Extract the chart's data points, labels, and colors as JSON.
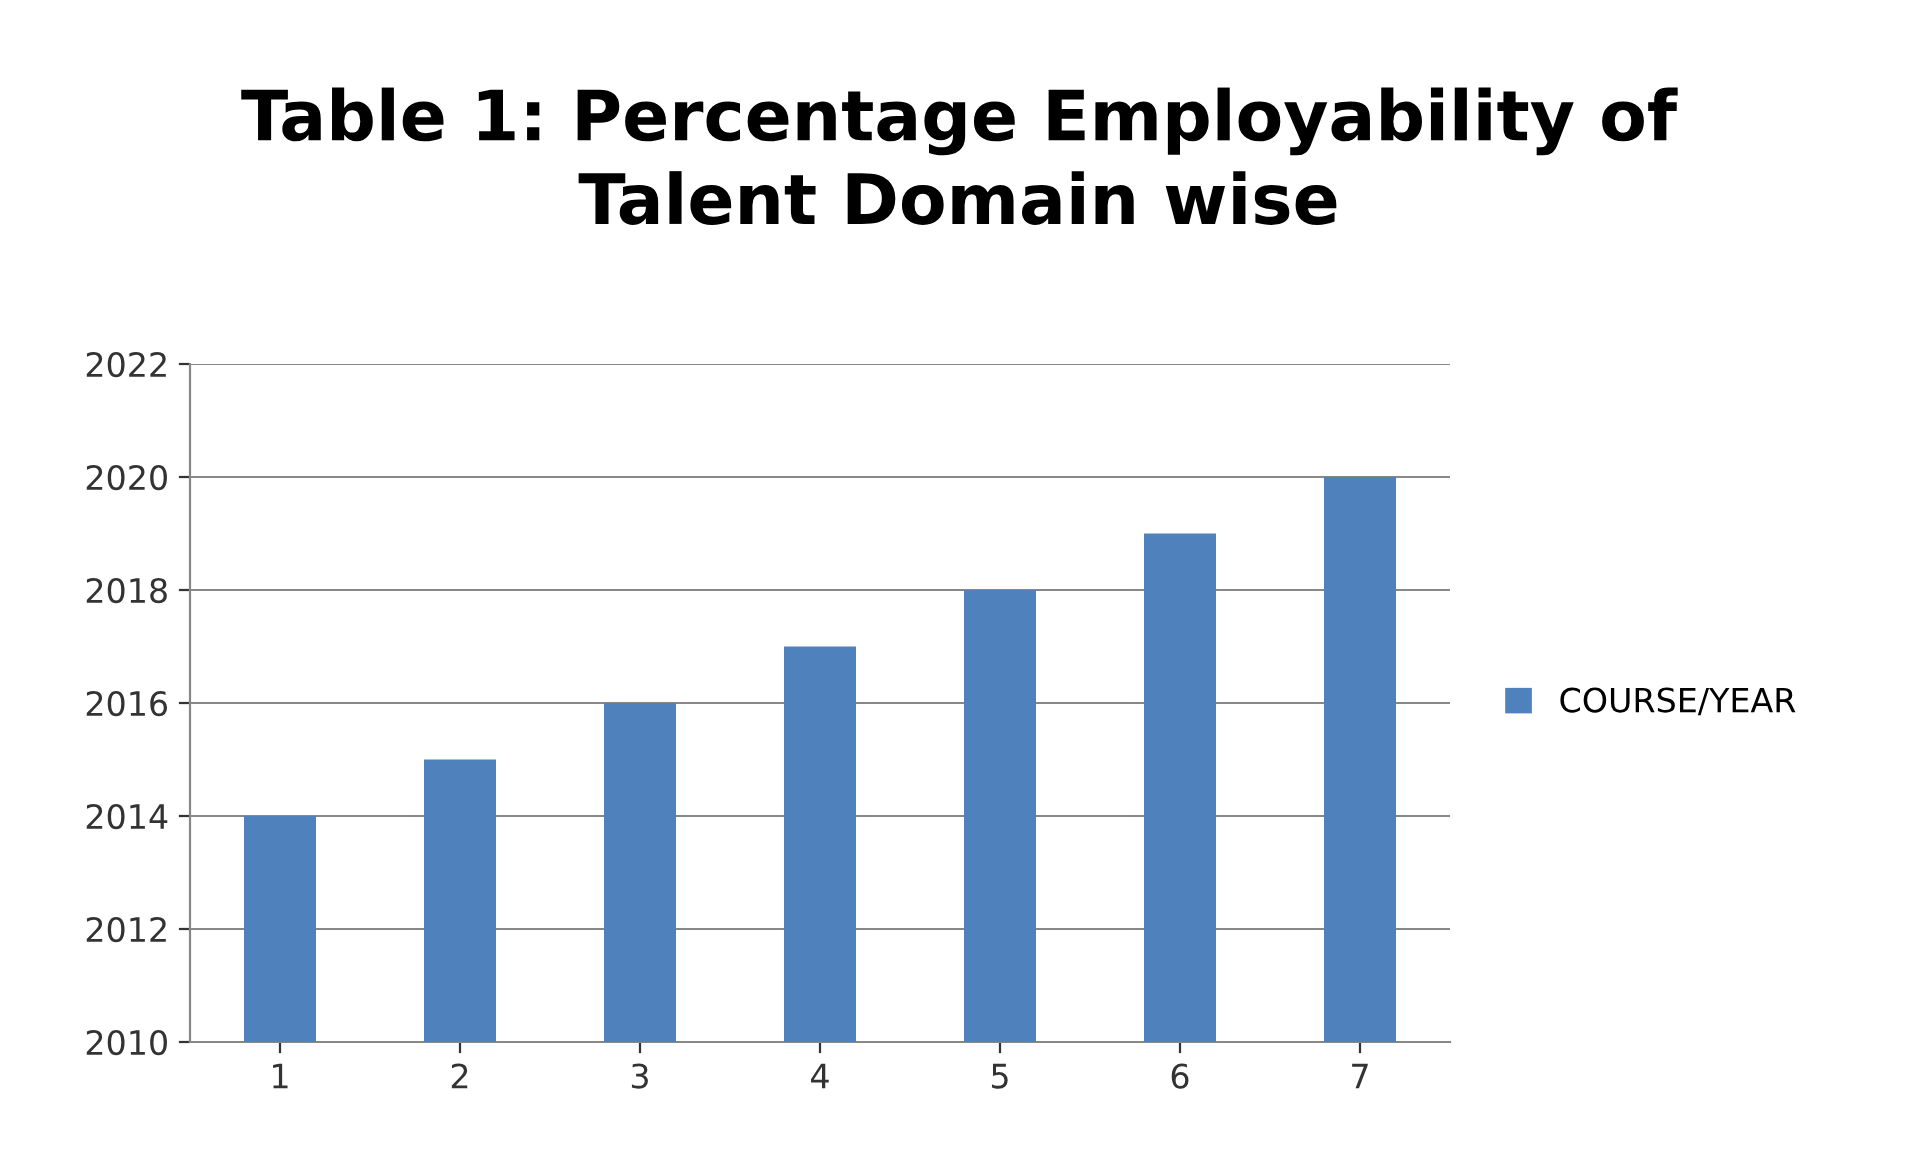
{
  "chart_data": {
    "type": "bar",
    "title": "Table 1: Percentage Employability of\nTalent Domain wise",
    "categories": [
      "1",
      "2",
      "3",
      "4",
      "5",
      "6",
      "7"
    ],
    "series": [
      {
        "name": "COURSE/YEAR",
        "color": "#4f81bd",
        "values": [
          2014,
          2015,
          2016,
          2017,
          2018,
          2019,
          2020
        ]
      }
    ],
    "ylim": [
      2010,
      2022
    ],
    "yticks": [
      2010,
      2012,
      2014,
      2016,
      2018,
      2020,
      2022
    ],
    "grid": "y",
    "legend": "right"
  }
}
